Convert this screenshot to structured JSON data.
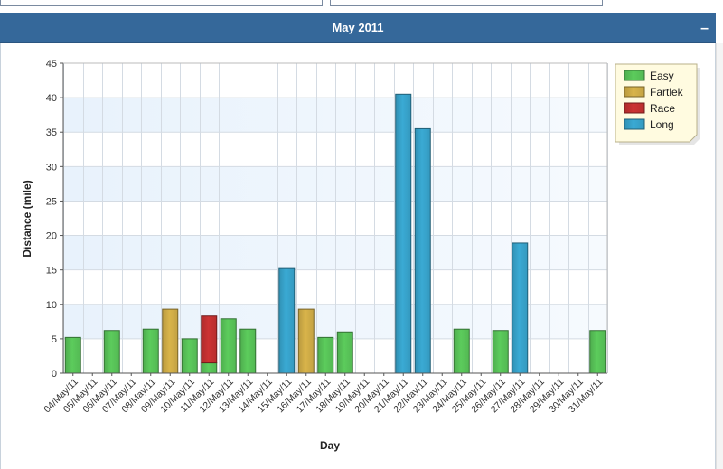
{
  "panel": {
    "title": "May 2011",
    "collapse_label": "–"
  },
  "chart_data": {
    "type": "bar",
    "xlabel": "Day",
    "ylabel": "Distance (mile)",
    "ylim": [
      0,
      45
    ],
    "yticks": [
      0,
      5,
      10,
      15,
      20,
      25,
      30,
      35,
      40,
      45
    ],
    "grid": true,
    "legend_position": "top-right",
    "categories": [
      "04/May/11",
      "05/May/11",
      "06/May/11",
      "07/May/11",
      "08/May/11",
      "09/May/11",
      "10/May/11",
      "11/May/11",
      "12/May/11",
      "13/May/11",
      "14/May/11",
      "15/May/11",
      "16/May/11",
      "17/May/11",
      "18/May/11",
      "19/May/11",
      "20/May/11",
      "21/May/11",
      "22/May/11",
      "23/May/11",
      "24/May/11",
      "25/May/11",
      "26/May/11",
      "27/May/11",
      "28/May/11",
      "29/May/11",
      "30/May/11",
      "31/May/11"
    ],
    "series": [
      {
        "name": "Easy",
        "color": "#5ccc5c",
        "values": [
          5.2,
          0,
          6.2,
          0,
          6.4,
          0,
          5.0,
          1.5,
          7.9,
          6.4,
          0,
          0,
          0,
          5.2,
          6.0,
          0,
          0,
          0,
          0,
          0,
          6.4,
          0,
          6.2,
          0,
          0,
          0,
          0,
          6.2
        ]
      },
      {
        "name": "Fartlek",
        "color": "#d9b44a",
        "values": [
          0,
          0,
          0,
          0,
          0,
          9.3,
          0,
          0,
          0,
          0,
          0,
          0,
          9.3,
          0,
          0,
          0,
          0,
          0,
          0,
          0,
          0,
          0,
          0,
          0,
          0,
          0,
          0,
          0
        ]
      },
      {
        "name": "Race",
        "color": "#cc3333",
        "values": [
          0,
          0,
          0,
          0,
          0,
          0,
          0,
          6.8,
          0,
          0,
          0,
          0,
          0,
          0,
          0,
          0,
          0,
          0,
          0,
          0,
          0,
          0,
          0,
          0,
          0,
          0,
          0,
          0
        ]
      },
      {
        "name": "Long",
        "color": "#3aaad4",
        "values": [
          0,
          0,
          0,
          0,
          0,
          0,
          0,
          0,
          0,
          0,
          0,
          15.2,
          0,
          0,
          0,
          0,
          0,
          40.5,
          35.5,
          0,
          0,
          0,
          0,
          18.9,
          0,
          0,
          0,
          0
        ]
      }
    ]
  }
}
